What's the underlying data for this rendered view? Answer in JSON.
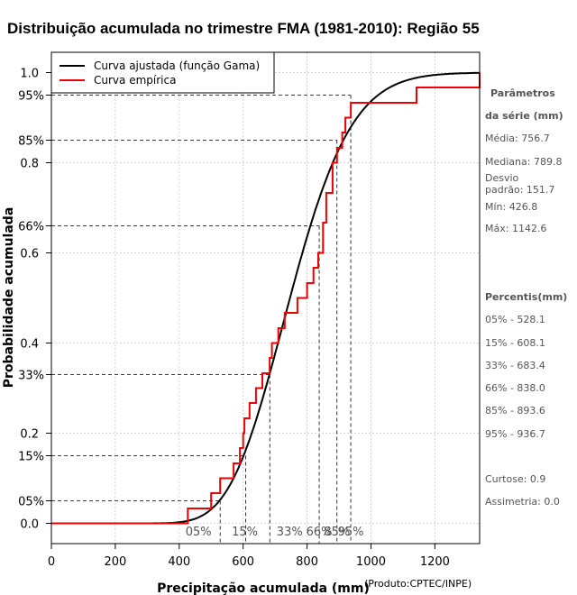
{
  "chart_data": {
    "type": "line",
    "title": "Distribuição acumulada no trimestre FMA (1981-2010): Região 55",
    "xlabel": "Precipitação acumulada (mm)",
    "ylabel": "Probabilidade acumulada",
    "credit": "(Produto:CPTEC/INPE)",
    "xlim": [
      0,
      1340
    ],
    "ylim": [
      -0.045,
      1.045
    ],
    "x_ticks": [
      0,
      200,
      400,
      600,
      800,
      1000,
      1200
    ],
    "y_ticks": [
      0.0,
      0.2,
      0.4,
      0.6,
      0.8,
      1.0
    ],
    "y_tick_labels": [
      "0.0",
      "0.2",
      "0.4",
      "0.6",
      "0.8",
      "1.0"
    ],
    "grid": true,
    "legend": {
      "placement": "top-left",
      "entries": [
        {
          "label": "Curva ajustada (função Gama)",
          "color": "#000000"
        },
        {
          "label": "Curva empírica",
          "color": "#ee0000"
        }
      ]
    },
    "gamma_fit": {
      "mean": 756.7,
      "sd": 151.7,
      "color": "#000000"
    },
    "empirical": {
      "color": "#ee0000",
      "x": [
        0,
        426.8,
        500,
        528,
        570,
        590,
        600,
        604,
        620,
        640,
        660,
        683,
        690,
        710,
        730,
        770,
        800,
        820,
        835,
        850,
        860,
        880,
        893.6,
        910,
        920,
        937,
        1142.6,
        1340
      ],
      "y": [
        0.0,
        0.033,
        0.067,
        0.1,
        0.133,
        0.167,
        0.2,
        0.233,
        0.267,
        0.3,
        0.333,
        0.367,
        0.4,
        0.433,
        0.467,
        0.5,
        0.533,
        0.567,
        0.6,
        0.667,
        0.733,
        0.8,
        0.833,
        0.867,
        0.9,
        0.933,
        0.967,
        1.0
      ]
    },
    "percentile_lines": [
      {
        "label": "05%",
        "prob": 0.05,
        "value": 528.1
      },
      {
        "label": "15%",
        "prob": 0.15,
        "value": 608.1
      },
      {
        "label": "33%",
        "prob": 0.33,
        "value": 683.4
      },
      {
        "label": "66%",
        "prob": 0.66,
        "value": 838.0
      },
      {
        "label": "85%",
        "prob": 0.85,
        "value": 893.6
      },
      {
        "label": "95%",
        "prob": 0.95,
        "value": 936.7
      }
    ]
  },
  "sidebar": {
    "params_heading_1": "Parâmetros",
    "params_heading_2": "da série (mm)",
    "media": "Média: 756.7",
    "mediana": "Mediana: 789.8",
    "desvio_1": "Desvio",
    "desvio_2": "padrão: 151.7",
    "min": "Mín: 426.8",
    "max": "Máx: 1142.6",
    "perc_heading": "Percentis(mm)",
    "p05": "05% - 528.1",
    "p15": "15% - 608.1",
    "p33": "33% - 683.4",
    "p66": "66% - 838.0",
    "p85": "85% - 893.6",
    "p95": "95% - 936.7",
    "curtose": "Curtose: 0.9",
    "assimetria": "Assimetria: 0.0"
  }
}
